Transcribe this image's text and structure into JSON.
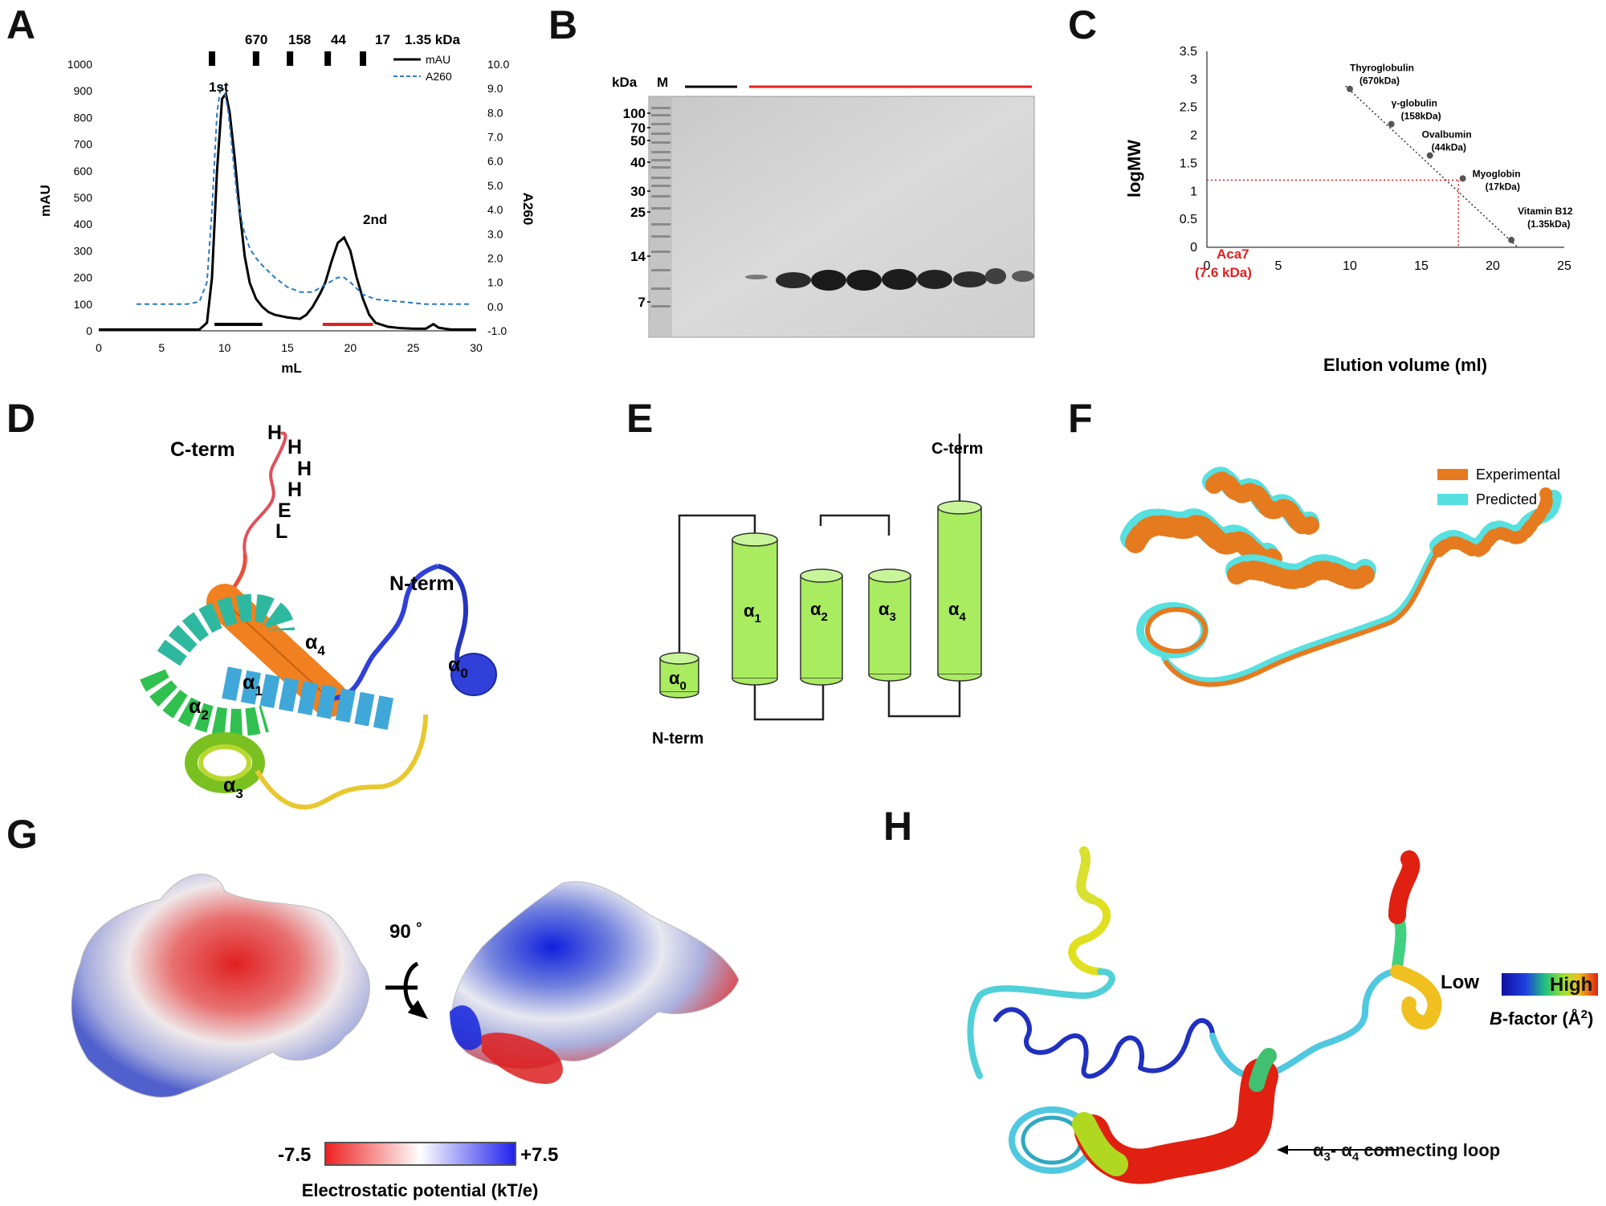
{
  "panels": {
    "A": "A",
    "B": "B",
    "C": "C",
    "D": "D",
    "E": "E",
    "F": "F",
    "G": "G",
    "H": "H"
  },
  "chart_data": [
    {
      "panel": "A",
      "type": "line",
      "xlabel": "mL",
      "ylabel": "mAU",
      "y2label": "A260",
      "xlim": [
        0,
        30
      ],
      "ylim": [
        0,
        1000
      ],
      "y2lim": [
        -1.0,
        10.0
      ],
      "xticks": [
        "0",
        "5",
        "10",
        "15",
        "20",
        "25",
        "30"
      ],
      "yticks": [
        "0",
        "100",
        "200",
        "300",
        "400",
        "500",
        "600",
        "700",
        "800",
        "900",
        "1000"
      ],
      "y2ticks": [
        "-1.0",
        "0.0",
        "1.0",
        "2.0",
        "3.0",
        "4.0",
        "5.0",
        "6.0",
        "7.0",
        "8.0",
        "9.0",
        "10.0"
      ],
      "mw_markers": {
        "labels": [
          "670",
          "158",
          "44",
          "17",
          "1.35 kDa"
        ],
        "x": [
          9.0,
          12.5,
          15.2,
          18.2,
          21.0
        ]
      },
      "series": [
        {
          "name": "mAU",
          "style": "solid",
          "color": "#000000",
          "x": [
            0,
            2,
            4,
            6,
            8,
            8.6,
            9.0,
            9.4,
            9.8,
            10.1,
            10.4,
            10.8,
            11.2,
            11.6,
            12.0,
            12.5,
            13.0,
            13.5,
            14.0,
            15.0,
            16.0,
            16.5,
            17.0,
            17.6,
            18.0,
            18.5,
            19.0,
            19.5,
            20.0,
            20.5,
            21.0,
            21.5,
            22.0,
            23.0,
            24.0,
            25.0,
            26.0,
            26.6,
            27.0,
            27.5,
            28.0,
            29.0,
            30.0
          ],
          "y": [
            5,
            5,
            5,
            5,
            5,
            30,
            200,
            600,
            870,
            890,
            820,
            650,
            450,
            280,
            180,
            120,
            90,
            70,
            60,
            50,
            45,
            60,
            90,
            140,
            180,
            260,
            330,
            350,
            300,
            200,
            120,
            60,
            30,
            15,
            10,
            8,
            8,
            25,
            12,
            8,
            5,
            5,
            5
          ]
        },
        {
          "name": "A260",
          "style": "dashed",
          "color": "#2b7bc4",
          "x": [
            3,
            5,
            7,
            8,
            8.6,
            9.0,
            9.4,
            9.7,
            10.0,
            10.3,
            10.6,
            11.0,
            11.5,
            12.0,
            12.5,
            13.0,
            14.0,
            15.0,
            16.0,
            17.0,
            18.0,
            19.0,
            19.5,
            20.0,
            21.0,
            22.0,
            24.0,
            26.0,
            28.0,
            29.5
          ],
          "y": [
            0.1,
            0.1,
            0.1,
            0.2,
            1.0,
            4.0,
            8.0,
            9.1,
            8.9,
            8.0,
            6.5,
            4.5,
            3.2,
            2.4,
            2.0,
            1.7,
            1.2,
            0.8,
            0.6,
            0.6,
            0.9,
            1.2,
            1.2,
            1.0,
            0.5,
            0.3,
            0.2,
            0.1,
            0.1,
            0.1
          ]
        }
      ],
      "annotations": [
        "1st",
        "2nd"
      ],
      "bars": [
        {
          "color": "#000000",
          "x": [
            9.2,
            13.0
          ]
        },
        {
          "color": "#e02020",
          "x": [
            17.8,
            21.8
          ]
        }
      ]
    },
    {
      "panel": "C",
      "type": "scatter",
      "xlabel": "Elution volume (ml)",
      "ylabel": "logMW",
      "xlim": [
        0,
        25
      ],
      "ylim": [
        0,
        3.5
      ],
      "xticks": [
        "0",
        "5",
        "10",
        "15",
        "20",
        "25"
      ],
      "yticks": [
        "0",
        "0.5",
        "1",
        "1.5",
        "2",
        "2.5",
        "3",
        "3.5"
      ],
      "points": [
        {
          "x": 10.0,
          "y": 2.83,
          "label": "Thyroglobulin",
          "sub": "(670kDa)"
        },
        {
          "x": 12.9,
          "y": 2.2,
          "label": "γ-globulin",
          "sub": "(158kDa)"
        },
        {
          "x": 15.6,
          "y": 1.64,
          "label": "Ovalbumin",
          "sub": "(44kDa)"
        },
        {
          "x": 17.9,
          "y": 1.23,
          "label": "Myoglobin",
          "sub": "(17kDa)"
        },
        {
          "x": 21.3,
          "y": 0.13,
          "label": "Vitamin B12",
          "sub": "(1.35kDa)"
        }
      ],
      "sample": {
        "label": "Aca7",
        "sub": "(7.6 kDa)",
        "x": 17.6,
        "y": 1.2,
        "color": "#e02020"
      }
    }
  ],
  "gel": {
    "kda_label": "kDa",
    "marker_label": "M",
    "ladder": [
      "100",
      "70",
      "50",
      "40",
      "30",
      "25",
      "14",
      "7"
    ]
  },
  "topology": {
    "cterm": "C-term",
    "nterm": "N-term",
    "helices": [
      {
        "sym": "α",
        "sub": "0"
      },
      {
        "sym": "α",
        "sub": "1"
      },
      {
        "sym": "α",
        "sub": "2"
      },
      {
        "sym": "α",
        "sub": "3"
      },
      {
        "sym": "α",
        "sub": "4"
      }
    ],
    "color": "#a9ec5f"
  },
  "structure_d": {
    "cterm": "C-term",
    "nterm": "N-term",
    "tag": [
      "H",
      "H",
      "H",
      "H",
      "E",
      "L"
    ],
    "helix_labels": [
      {
        "sym": "α",
        "sub": "0"
      },
      {
        "sym": "α",
        "sub": "1"
      },
      {
        "sym": "α",
        "sub": "2"
      },
      {
        "sym": "α",
        "sub": "3"
      },
      {
        "sym": "α",
        "sub": "4"
      }
    ]
  },
  "structure_f": {
    "legend": [
      {
        "label": "Experimental",
        "color": "#e67a1e"
      },
      {
        "label": "Predicted",
        "color": "#56e0e0"
      }
    ]
  },
  "surface_g": {
    "rotation": "90 ˚",
    "min": "-7.5",
    "max": "+7.5",
    "caption": "Electrostatic potential (kT/e)"
  },
  "bfactor_h": {
    "low": "Low",
    "high": "High",
    "caption_italic": "B",
    "caption_rest": "-factor (Å",
    "caption_sup": "2",
    "caption_close": ")",
    "loop_sym_a": "α",
    "loop_sub_a": "3",
    "loop_dash": "- ",
    "loop_sym_b": "α",
    "loop_sub_b": "4",
    "loop_rest": " connecting loop"
  }
}
